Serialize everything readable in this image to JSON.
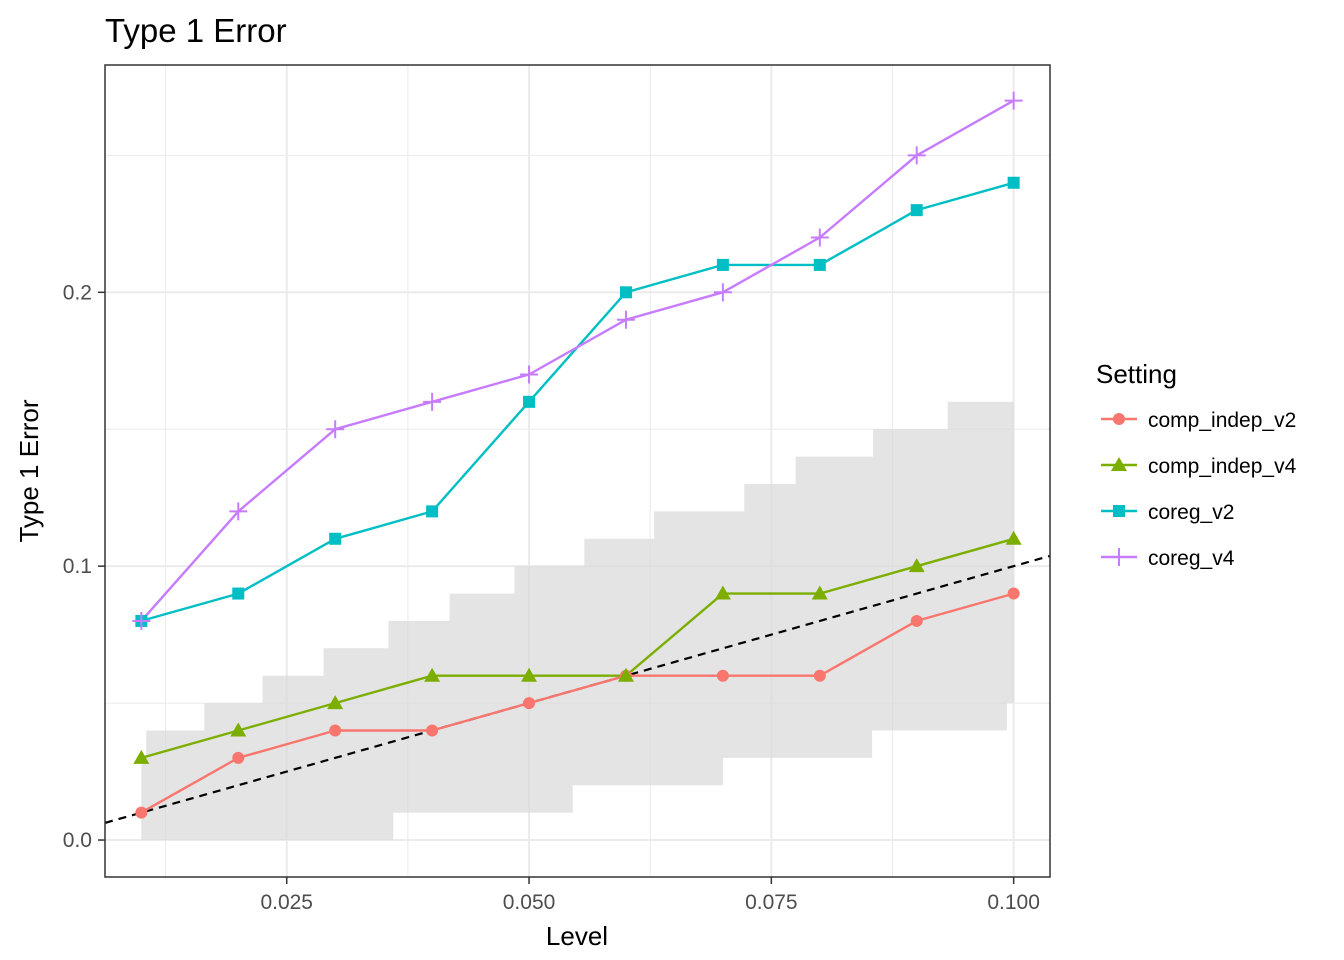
{
  "chart_data": {
    "type": "line",
    "title": "Type 1 Error",
    "xlabel": "Level",
    "ylabel": "Type 1 Error",
    "xlim": [
      0.00625,
      0.10375
    ],
    "ylim": [
      -0.0135,
      0.283
    ],
    "x_ticks": [
      0.025,
      0.05,
      0.075,
      0.1
    ],
    "x_tick_labels": [
      "0.025",
      "0.050",
      "0.075",
      "0.100"
    ],
    "y_ticks": [
      0.0,
      0.1,
      0.2
    ],
    "y_tick_labels": [
      "0.0",
      "0.1",
      "0.2"
    ],
    "grid": true,
    "legend": {
      "title": "Setting",
      "position": "right"
    },
    "x": [
      0.01,
      0.02,
      0.03,
      0.04,
      0.05,
      0.06,
      0.07,
      0.08,
      0.09,
      0.1
    ],
    "series": [
      {
        "name": "comp_indep_v2",
        "color": "#F8766D",
        "marker": "circle",
        "values": [
          0.01,
          0.03,
          0.04,
          0.04,
          0.05,
          0.06,
          0.06,
          0.06,
          0.08,
          0.09
        ]
      },
      {
        "name": "comp_indep_v4",
        "color": "#7CAE00",
        "marker": "triangle",
        "values": [
          0.03,
          0.04,
          0.05,
          0.06,
          0.06,
          0.06,
          0.09,
          0.09,
          0.1,
          0.11
        ]
      },
      {
        "name": "coreg_v2",
        "color": "#00BFC4",
        "marker": "square",
        "values": [
          0.08,
          0.09,
          0.11,
          0.12,
          0.16,
          0.2,
          0.21,
          0.21,
          0.23,
          0.24
        ]
      },
      {
        "name": "coreg_v4",
        "color": "#C77CFF",
        "marker": "plus",
        "values": [
          0.08,
          0.12,
          0.15,
          0.16,
          0.17,
          0.19,
          0.2,
          0.22,
          0.25,
          0.27
        ]
      }
    ],
    "reference_line": {
      "slope": 1,
      "intercept": 0,
      "style": "dashed",
      "color": "#000000"
    },
    "confidence_band": {
      "color": "#d9d9d9",
      "steps": [
        {
          "x0": 0.01,
          "x1": 0.0105,
          "lo": 0.0,
          "hi": 0.03
        },
        {
          "x0": 0.0105,
          "x1": 0.0165,
          "lo": 0.0,
          "hi": 0.04
        },
        {
          "x0": 0.0165,
          "x1": 0.0225,
          "lo": 0.0,
          "hi": 0.05
        },
        {
          "x0": 0.0225,
          "x1": 0.0288,
          "lo": 0.0,
          "hi": 0.06
        },
        {
          "x0": 0.0288,
          "x1": 0.0355,
          "lo": 0.0,
          "hi": 0.07
        },
        {
          "x0": 0.0355,
          "x1": 0.036,
          "lo": 0.0,
          "hi": 0.08
        },
        {
          "x0": 0.036,
          "x1": 0.0418,
          "lo": 0.01,
          "hi": 0.08
        },
        {
          "x0": 0.0418,
          "x1": 0.0485,
          "lo": 0.01,
          "hi": 0.09
        },
        {
          "x0": 0.0485,
          "x1": 0.0545,
          "lo": 0.01,
          "hi": 0.1
        },
        {
          "x0": 0.0545,
          "x1": 0.0557,
          "lo": 0.02,
          "hi": 0.1
        },
        {
          "x0": 0.0557,
          "x1": 0.0629,
          "lo": 0.02,
          "hi": 0.11
        },
        {
          "x0": 0.0629,
          "x1": 0.07,
          "lo": 0.02,
          "hi": 0.12
        },
        {
          "x0": 0.07,
          "x1": 0.0722,
          "lo": 0.03,
          "hi": 0.12
        },
        {
          "x0": 0.0722,
          "x1": 0.0775,
          "lo": 0.03,
          "hi": 0.13
        },
        {
          "x0": 0.0775,
          "x1": 0.0854,
          "lo": 0.03,
          "hi": 0.14
        },
        {
          "x0": 0.0854,
          "x1": 0.0855,
          "lo": 0.04,
          "hi": 0.14
        },
        {
          "x0": 0.0855,
          "x1": 0.0932,
          "lo": 0.04,
          "hi": 0.15
        },
        {
          "x0": 0.0932,
          "x1": 0.0993,
          "lo": 0.04,
          "hi": 0.16
        },
        {
          "x0": 0.0993,
          "x1": 0.1,
          "lo": 0.05,
          "hi": 0.16
        }
      ]
    }
  }
}
